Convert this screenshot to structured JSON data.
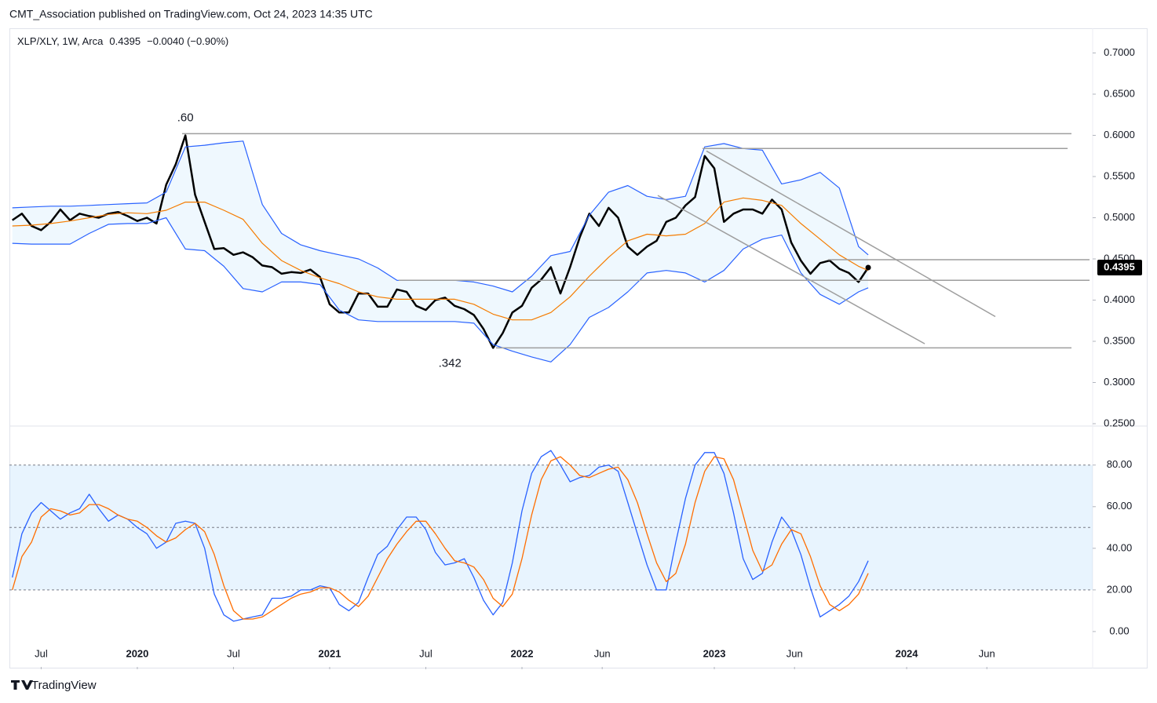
{
  "header": {
    "publisher": "CMT_Association published on TradingView.com, Oct 24, 2023 14:35 UTC",
    "symbol": "XLP/XLY, 1W, Arca",
    "last": "0.4395",
    "change": "−0.0040 (−0.90%)"
  },
  "footer": {
    "brand": "TradingView"
  },
  "chart_data": [
    {
      "type": "line",
      "xlim": [
        2019.335,
        2024.967
      ],
      "ylim": [
        0.25,
        0.73
      ],
      "yticks": [
        {
          "value": 0.25,
          "label": "0.2500"
        },
        {
          "value": 0.3,
          "label": "0.3000"
        },
        {
          "value": 0.35,
          "label": "0.3500"
        },
        {
          "value": 0.4,
          "label": "0.4000"
        },
        {
          "value": 0.45,
          "label": "0.4500"
        },
        {
          "value": 0.5,
          "label": "0.5000"
        },
        {
          "value": 0.55,
          "label": "0.5500"
        },
        {
          "value": 0.6,
          "label": "0.6000"
        },
        {
          "value": 0.65,
          "label": "0.6500"
        },
        {
          "value": 0.7,
          "label": "0.7000"
        }
      ],
      "grid": false,
      "price_label": true,
      "x": [
        2019.35,
        2019.4,
        2019.45,
        2019.5,
        2019.55,
        2019.6,
        2019.65,
        2019.7,
        2019.75,
        2019.8,
        2019.85,
        2019.9,
        2019.95,
        2020,
        2020.05,
        2020.1,
        2020.15,
        2020.2,
        2020.25,
        2020.3,
        2020.35,
        2020.4,
        2020.45,
        2020.5,
        2020.55,
        2020.6,
        2020.65,
        2020.7,
        2020.75,
        2020.8,
        2020.85,
        2020.9,
        2020.95,
        2021,
        2021.05,
        2021.1,
        2021.15,
        2021.2,
        2021.25,
        2021.3,
        2021.35,
        2021.4,
        2021.45,
        2021.5,
        2021.55,
        2021.6,
        2021.65,
        2021.7,
        2021.75,
        2021.8,
        2021.85,
        2021.9,
        2021.95,
        2022,
        2022.05,
        2022.1,
        2022.15,
        2022.2,
        2022.25,
        2022.3,
        2022.35,
        2022.4,
        2022.45,
        2022.5,
        2022.55,
        2022.6,
        2022.65,
        2022.7,
        2022.75,
        2022.8,
        2022.85,
        2022.9,
        2022.95,
        2023,
        2023.05,
        2023.1,
        2023.15,
        2023.2,
        2023.25,
        2023.3,
        2023.35,
        2023.4,
        2023.45,
        2023.5,
        2023.55,
        2023.6,
        2023.65,
        2023.7,
        2023.75,
        2023.8
      ],
      "series": [
        {
          "color": "#000000",
          "width": 2.5,
          "values": [
            0.497,
            0.505,
            0.49,
            0.485,
            0.495,
            0.51,
            0.497,
            0.505,
            0.502,
            0.5,
            0.505,
            0.507,
            0.502,
            0.496,
            0.5,
            0.493,
            0.54,
            0.565,
            0.6,
            0.528,
            0.495,
            0.462,
            0.463,
            0.455,
            0.458,
            0.452,
            0.442,
            0.44,
            0.432,
            0.434,
            0.433,
            0.437,
            0.428,
            0.395,
            0.385,
            0.385,
            0.408,
            0.408,
            0.392,
            0.392,
            0.413,
            0.41,
            0.393,
            0.388,
            0.4,
            0.403,
            0.393,
            0.389,
            0.382,
            0.365,
            0.342,
            0.36,
            0.385,
            0.393,
            0.415,
            0.425,
            0.44,
            0.408,
            0.44,
            0.476,
            0.505,
            0.49,
            0.512,
            0.5,
            0.465,
            0.455,
            0.465,
            0.472,
            0.495,
            0.5,
            0.515,
            0.525,
            0.575,
            0.56,
            0.495,
            0.505,
            0.51,
            0.51,
            0.505,
            0.522,
            0.51,
            0.47,
            0.448,
            0.432,
            0.445,
            0.448,
            0.438,
            0.433,
            0.422,
            0.4395
          ]
        },
        {
          "color": "#2962ff",
          "width": 1.2,
          "fill": "rgba(33,150,243,0.07)",
          "x": [
            2019.35,
            2019.45,
            2019.55,
            2019.65,
            2019.75,
            2019.85,
            2019.95,
            2020.05,
            2020.15,
            2020.25,
            2020.35,
            2020.45,
            2020.55,
            2020.65,
            2020.75,
            2020.85,
            2020.95,
            2021.05,
            2021.15,
            2021.25,
            2021.35,
            2021.45,
            2021.55,
            2021.65,
            2021.75,
            2021.85,
            2021.95,
            2022.05,
            2022.15,
            2022.25,
            2022.35,
            2022.45,
            2022.55,
            2022.65,
            2022.75,
            2022.85,
            2022.95,
            2023.05,
            2023.15,
            2023.25,
            2023.35,
            2023.45,
            2023.55,
            2023.65,
            2023.75,
            2023.8
          ],
          "values": [
            0.512,
            0.513,
            0.514,
            0.514,
            0.515,
            0.516,
            0.517,
            0.518,
            0.531,
            0.586,
            0.588,
            0.591,
            0.593,
            0.516,
            0.481,
            0.467,
            0.46,
            0.455,
            0.45,
            0.439,
            0.424,
            0.424,
            0.424,
            0.424,
            0.422,
            0.417,
            0.41,
            0.429,
            0.454,
            0.459,
            0.503,
            0.531,
            0.539,
            0.526,
            0.522,
            0.526,
            0.586,
            0.59,
            0.584,
            0.582,
            0.541,
            0.546,
            0.555,
            0.536,
            0.465,
            0.455
          ]
        },
        {
          "color": "#2962ff",
          "width": 1.2,
          "x": [
            2019.35,
            2019.45,
            2019.55,
            2019.65,
            2019.75,
            2019.85,
            2019.95,
            2020.05,
            2020.15,
            2020.25,
            2020.35,
            2020.45,
            2020.55,
            2020.65,
            2020.75,
            2020.85,
            2020.95,
            2021.05,
            2021.15,
            2021.25,
            2021.35,
            2021.45,
            2021.55,
            2021.65,
            2021.75,
            2021.85,
            2021.95,
            2022.05,
            2022.15,
            2022.25,
            2022.35,
            2022.45,
            2022.55,
            2022.65,
            2022.75,
            2022.85,
            2022.95,
            2023.05,
            2023.15,
            2023.25,
            2023.35,
            2023.45,
            2023.55,
            2023.65,
            2023.75,
            2023.8
          ],
          "values": [
            0.469,
            0.468,
            0.468,
            0.468,
            0.481,
            0.492,
            0.493,
            0.493,
            0.5,
            0.462,
            0.46,
            0.441,
            0.414,
            0.41,
            0.422,
            0.422,
            0.419,
            0.388,
            0.376,
            0.374,
            0.374,
            0.374,
            0.374,
            0.374,
            0.372,
            0.346,
            0.338,
            0.331,
            0.325,
            0.346,
            0.379,
            0.391,
            0.41,
            0.433,
            0.436,
            0.433,
            0.422,
            0.436,
            0.462,
            0.474,
            0.479,
            0.433,
            0.407,
            0.395,
            0.41,
            0.415
          ]
        },
        {
          "color": "#f57c00",
          "width": 1.2,
          "x": [
            2019.35,
            2019.45,
            2019.55,
            2019.65,
            2019.75,
            2019.85,
            2019.95,
            2020.05,
            2020.15,
            2020.25,
            2020.35,
            2020.45,
            2020.55,
            2020.65,
            2020.75,
            2020.85,
            2020.95,
            2021.05,
            2021.15,
            2021.25,
            2021.35,
            2021.45,
            2021.55,
            2021.65,
            2021.75,
            2021.85,
            2021.95,
            2022.05,
            2022.15,
            2022.25,
            2022.35,
            2022.45,
            2022.55,
            2022.65,
            2022.75,
            2022.85,
            2022.95,
            2023.05,
            2023.15,
            2023.25,
            2023.35,
            2023.45,
            2023.55,
            2023.65,
            2023.75,
            2023.8
          ],
          "values": [
            0.49,
            0.491,
            0.493,
            0.496,
            0.5,
            0.504,
            0.506,
            0.505,
            0.509,
            0.519,
            0.519,
            0.509,
            0.498,
            0.469,
            0.448,
            0.436,
            0.427,
            0.42,
            0.41,
            0.404,
            0.401,
            0.401,
            0.401,
            0.401,
            0.395,
            0.383,
            0.376,
            0.376,
            0.385,
            0.404,
            0.429,
            0.452,
            0.472,
            0.48,
            0.478,
            0.48,
            0.493,
            0.519,
            0.524,
            0.521,
            0.515,
            0.493,
            0.474,
            0.455,
            0.441,
            0.436
          ]
        }
      ],
      "lines": [
        {
          "x": [
            2020.233,
            2024.857
          ],
          "y": [
            0.602,
            0.602
          ]
        },
        {
          "x": [
            2022.939,
            2024.837
          ],
          "y": [
            0.584,
            0.584
          ]
        },
        {
          "x": [
            2023.592,
            2024.951
          ],
          "y": [
            0.449,
            0.449
          ]
        },
        {
          "x": [
            2021.359,
            2024.951
          ],
          "y": [
            0.424,
            0.424
          ]
        },
        {
          "x": [
            2021.865,
            2024.857
          ],
          "y": [
            0.342,
            0.342
          ]
        },
        {
          "x": [
            2022.959,
            2024.461
          ],
          "y": [
            0.581,
            0.38
          ]
        },
        {
          "x": [
            2022.706,
            2024.094
          ],
          "y": [
            0.527,
            0.347
          ]
        }
      ],
      "line_color": "#9e9e9e",
      "annotations": [
        {
          "text": ".60",
          "x": 2020.25,
          "y": 0.6
        },
        {
          "text": ".342",
          "x": 2021.85,
          "y": 0.342
        }
      ]
    },
    {
      "type": "line",
      "xlim": [
        2019.335,
        2024.967
      ],
      "ylim": [
        -17,
        98
      ],
      "yticks": [
        {
          "value": 0,
          "label": "0.00"
        },
        {
          "value": 20,
          "label": "20.00"
        },
        {
          "value": 40,
          "label": "40.00"
        },
        {
          "value": 60,
          "label": "60.00"
        },
        {
          "value": 80,
          "label": "80.00"
        }
      ],
      "xticks": [
        {
          "value": 2019.5,
          "label": "Jul"
        },
        2020,
        {
          "value": 2020.5,
          "label": "Jul"
        },
        2021,
        {
          "value": 2021.5,
          "label": "Jul"
        },
        2022,
        {
          "value": 2022.417,
          "label": "Jun"
        },
        2023,
        {
          "value": 2023.417,
          "label": "Jun"
        },
        2024,
        {
          "value": 2024.417,
          "label": "Jun"
        }
      ],
      "grid": false,
      "levels": [
        80,
        50,
        20
      ],
      "level_fill": "rgba(33,150,243,0.1)",
      "level_color": "#787b86",
      "x": [
        2019.35,
        2019.4,
        2019.45,
        2019.5,
        2019.55,
        2019.6,
        2019.65,
        2019.7,
        2019.75,
        2019.8,
        2019.85,
        2019.9,
        2019.95,
        2020,
        2020.05,
        2020.1,
        2020.15,
        2020.2,
        2020.25,
        2020.3,
        2020.35,
        2020.4,
        2020.45,
        2020.5,
        2020.55,
        2020.6,
        2020.65,
        2020.7,
        2020.75,
        2020.8,
        2020.85,
        2020.9,
        2020.95,
        2021,
        2021.05,
        2021.1,
        2021.15,
        2021.2,
        2021.25,
        2021.3,
        2021.35,
        2021.4,
        2021.45,
        2021.5,
        2021.55,
        2021.6,
        2021.65,
        2021.7,
        2021.75,
        2021.8,
        2021.85,
        2021.9,
        2021.95,
        2022,
        2022.05,
        2022.1,
        2022.15,
        2022.2,
        2022.25,
        2022.3,
        2022.35,
        2022.4,
        2022.45,
        2022.5,
        2022.55,
        2022.6,
        2022.65,
        2022.7,
        2022.75,
        2022.8,
        2022.85,
        2022.9,
        2022.95,
        2023,
        2023.05,
        2023.1,
        2023.15,
        2023.2,
        2023.25,
        2023.3,
        2023.35,
        2023.4,
        2023.45,
        2023.5,
        2023.55,
        2023.6,
        2023.65,
        2023.7,
        2023.75,
        2023.8
      ],
      "series": [
        {
          "color": "#2962ff",
          "width": 1.3,
          "values": [
            26,
            47,
            57,
            62,
            58,
            54,
            57,
            59,
            66,
            59,
            53,
            56,
            54,
            50,
            47,
            40,
            43,
            52,
            53,
            52,
            40,
            18,
            8,
            5,
            6,
            7,
            8,
            16,
            16,
            17,
            20,
            20,
            22,
            21,
            13,
            10,
            14,
            26,
            37,
            41,
            49,
            55,
            55,
            49,
            38,
            32,
            33,
            35,
            26,
            15,
            8,
            14,
            33,
            58,
            76,
            84,
            87,
            80,
            72,
            74,
            75,
            79,
            80,
            77,
            62,
            47,
            32,
            20,
            20,
            43,
            64,
            80,
            86,
            86,
            76,
            57,
            35,
            25,
            28,
            43,
            55,
            49,
            37,
            21,
            7,
            10,
            13,
            17,
            24,
            34
          ]
        },
        {
          "color": "#ff6d00",
          "width": 1.3,
          "values": [
            20,
            36,
            43,
            55,
            59,
            58,
            56,
            57,
            61,
            61,
            59,
            56,
            54,
            53,
            50,
            46,
            43,
            45,
            49,
            52,
            48,
            37,
            22,
            10,
            6,
            6,
            7,
            10,
            13,
            16,
            18,
            19,
            21,
            21,
            19,
            15,
            12,
            17,
            26,
            35,
            42,
            48,
            53,
            53,
            47,
            40,
            34,
            33,
            31,
            25,
            16,
            12,
            18,
            35,
            56,
            73,
            82,
            84,
            80,
            75,
            74,
            76,
            78,
            79,
            73,
            62,
            47,
            33,
            24,
            28,
            42,
            62,
            77,
            84,
            83,
            73,
            56,
            39,
            29,
            32,
            42,
            49,
            47,
            36,
            22,
            13,
            10,
            13,
            18,
            28
          ]
        }
      ]
    }
  ]
}
